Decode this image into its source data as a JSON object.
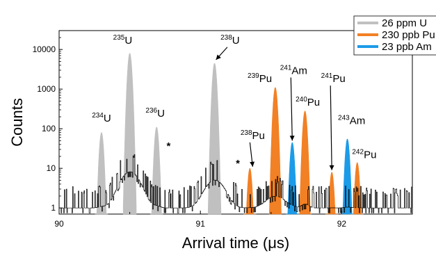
{
  "chart_data": {
    "type": "area",
    "xlabel": "Arrival time (μs)",
    "ylabel": "Counts",
    "y_scale": "log",
    "xlim": [
      90.0,
      92.5
    ],
    "ylim": [
      0.7,
      30000
    ],
    "x_ticks": [
      90,
      91,
      92
    ],
    "x_tick_labels": [
      "90",
      "91",
      "92"
    ],
    "y_ticks": [
      1,
      10,
      100,
      1000,
      10000
    ],
    "y_tick_labels": [
      "1",
      "10",
      "100",
      "1000",
      "10000"
    ],
    "grid": false,
    "legend_position": "top-right",
    "colors": {
      "baseline": "#000000",
      "uranium": "#c0c0c0",
      "plutonium": "#f28025",
      "americium": "#1c9be8"
    },
    "series": [
      {
        "name": "26 ppm U",
        "color": "#c0c0c0",
        "peaks": [
          {
            "isotope": "234U",
            "x": 90.3,
            "height": 80
          },
          {
            "isotope": "235U",
            "x": 90.5,
            "height": 8000
          },
          {
            "isotope": "236U",
            "x": 90.69,
            "height": 110
          },
          {
            "isotope": "238U",
            "x": 91.1,
            "height": 4500
          }
        ]
      },
      {
        "name": "230 ppb Pu",
        "color": "#f28025",
        "peaks": [
          {
            "isotope": "238Pu",
            "x": 91.35,
            "height": 10
          },
          {
            "isotope": "239Pu",
            "x": 91.53,
            "height": 1100
          },
          {
            "isotope": "240Pu",
            "x": 91.74,
            "height": 280
          },
          {
            "isotope": "241Pu",
            "x": 91.93,
            "height": 8
          },
          {
            "isotope": "242Pu",
            "x": 92.11,
            "height": 14
          }
        ]
      },
      {
        "name": "23 ppb Am",
        "color": "#1c9be8",
        "peaks": [
          {
            "isotope": "241Am",
            "x": 91.65,
            "height": 45
          },
          {
            "isotope": "243Am",
            "x": 92.04,
            "height": 55
          }
        ]
      }
    ],
    "annotations": [
      {
        "mass": "234",
        "symbol": "U",
        "x": 90.3,
        "y": 150,
        "arrow": false
      },
      {
        "mass": "235",
        "symbol": "U",
        "x": 90.45,
        "y": 14000,
        "arrow": false
      },
      {
        "mass": "236",
        "symbol": "U",
        "x": 90.68,
        "y": 200,
        "arrow": false
      },
      {
        "mass": "238",
        "symbol": "U",
        "x": 91.21,
        "y": 14000,
        "arrow": true,
        "arrow_to": [
          91.11,
          5500
        ]
      },
      {
        "mass": "238",
        "symbol": "Pu",
        "x": 91.37,
        "y": 55,
        "arrow": true,
        "arrow_to": [
          91.37,
          11
        ]
      },
      {
        "mass": "239",
        "symbol": "Pu",
        "x": 91.42,
        "y": 1500,
        "arrow": false
      },
      {
        "mass": "241",
        "symbol": "Am",
        "x": 91.66,
        "y": 2400,
        "arrow": true,
        "arrow_to": [
          91.65,
          50
        ]
      },
      {
        "mass": "240",
        "symbol": "Pu",
        "x": 91.76,
        "y": 380,
        "arrow": false
      },
      {
        "mass": "241",
        "symbol": "Pu",
        "x": 91.94,
        "y": 1500,
        "arrow": true,
        "arrow_to": [
          91.93,
          9
        ]
      },
      {
        "mass": "243",
        "symbol": "Am",
        "x": 92.07,
        "y": 130,
        "arrow": false
      },
      {
        "mass": "242",
        "symbol": "Pu",
        "x": 92.16,
        "y": 18,
        "arrow": false
      }
    ],
    "markers": [
      {
        "text": "*",
        "x": 90.775,
        "y": 30
      },
      {
        "text": "*",
        "x": 91.265,
        "y": 11
      }
    ]
  }
}
